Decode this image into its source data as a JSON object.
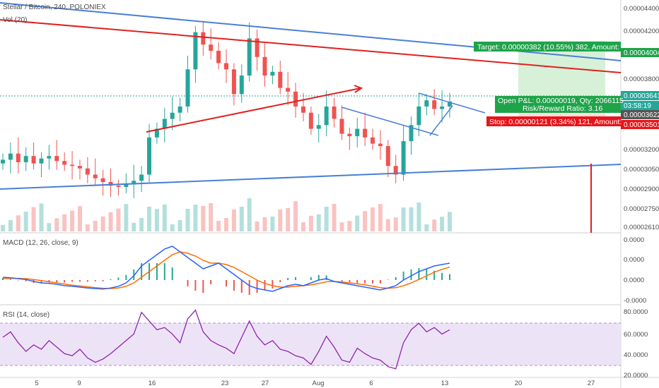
{
  "header": {
    "symbol_title": "Stellar / Bitcoin, 240, POLONIEX",
    "volume_label": "Vol (20)"
  },
  "chart_data": [
    {
      "type": "candlestick",
      "title": "Stellar / Bitcoin, 240, POLONIEX",
      "y_ticks": [
        "0.00004400",
        "0.00004200",
        "0.00003800",
        "0.00003350",
        "0.00003200",
        "0.00003050",
        "0.00002900",
        "0.00002750",
        "0.00002610"
      ],
      "x_ticks": [
        "5",
        "9",
        "16",
        "23",
        "27",
        "Aug",
        "6",
        "13",
        "20",
        "27"
      ],
      "price_tags": [
        {
          "text": "0.00004004",
          "color": "#1fa34a"
        },
        {
          "text": "0.00003641",
          "color": "#26a69a"
        },
        {
          "text": "03:58:19",
          "color": "#26a69a"
        },
        {
          "text": "0.00003622",
          "color": "#555555"
        },
        {
          "text": "0.00003501",
          "color": "#e8141a"
        }
      ],
      "position_tool": {
        "target_label": "Target: 0.00000382 (10.55%) 382, Amount:",
        "pnl_label": "Open P&L: 0.00000019, Qty: 2066115",
        "rr_label": "Risk/Reward Ratio: 3.16",
        "stop_label": "Stop: 0.00000121 (3.34%) 121, Amount:",
        "entry": 3.622e-05,
        "target": 4.004e-05,
        "stop": 3.501e-05
      },
      "ylim": [
        2.58e-05,
        4.46e-05
      ],
      "close_series": [
        3.17,
        3.22,
        3.15,
        3.2,
        3.14,
        3.18,
        3.2,
        3.16,
        3.13,
        3.12,
        3.1,
        3.05,
        3.02,
        2.99,
        2.96,
        2.95,
        2.97,
        3.0,
        3.05,
        3.35,
        3.42,
        3.5,
        3.55,
        3.6,
        3.9,
        4.2,
        4.1,
        4.05,
        3.95,
        3.9,
        3.7,
        3.85,
        4.15,
        4.0,
        3.85,
        3.88,
        3.75,
        3.72,
        3.6,
        3.55,
        3.42,
        3.45,
        3.6,
        3.5,
        3.38,
        3.36,
        3.42,
        3.35,
        3.3,
        3.28,
        3.12,
        3.05,
        3.32,
        3.45,
        3.6,
        3.65,
        3.58,
        3.6,
        3.64
      ],
      "series_colors": {
        "up": "#26a69a",
        "down": "#ef5350"
      }
    },
    {
      "type": "line",
      "title": "MACD (12, 26, close, 9)",
      "y_ticks": [
        "0.0000",
        "0.0000",
        "0.0000",
        "-0.0000"
      ],
      "macd": [
        0.1,
        0.08,
        0.05,
        0.02,
        -0.05,
        -0.1,
        -0.12,
        -0.15,
        -0.2,
        -0.22,
        -0.25,
        -0.28,
        -0.3,
        -0.32,
        -0.28,
        -0.22,
        -0.1,
        0.15,
        0.5,
        0.7,
        0.9,
        1.1,
        1.2,
        1.0,
        0.8,
        0.6,
        0.4,
        0.5,
        0.6,
        0.4,
        0.2,
        0.0,
        -0.2,
        -0.3,
        -0.35,
        -0.4,
        -0.3,
        -0.2,
        -0.15,
        -0.2,
        -0.1,
        0.0,
        0.05,
        -0.05,
        -0.1,
        -0.15,
        -0.2,
        -0.25,
        -0.3,
        -0.35,
        -0.28,
        -0.2,
        0.0,
        0.15,
        0.3,
        0.4,
        0.5,
        0.55,
        0.6
      ],
      "signal": [
        0.05,
        0.06,
        0.06,
        0.05,
        0.02,
        -0.02,
        -0.06,
        -0.1,
        -0.14,
        -0.18,
        -0.21,
        -0.24,
        -0.27,
        -0.29,
        -0.3,
        -0.28,
        -0.22,
        -0.1,
        0.1,
        0.3,
        0.5,
        0.7,
        0.9,
        1.0,
        0.95,
        0.85,
        0.7,
        0.6,
        0.6,
        0.55,
        0.45,
        0.3,
        0.15,
        0.0,
        -0.12,
        -0.2,
        -0.25,
        -0.25,
        -0.22,
        -0.2,
        -0.17,
        -0.12,
        -0.06,
        -0.05,
        -0.07,
        -0.1,
        -0.13,
        -0.17,
        -0.22,
        -0.27,
        -0.29,
        -0.27,
        -0.2,
        -0.1,
        0.02,
        0.15,
        0.28,
        0.38,
        0.46
      ],
      "macd_color": "#2962ff",
      "signal_color": "#ff6d00"
    },
    {
      "type": "line",
      "title": "RSI (14, close)",
      "y_ticks": [
        "80.0000",
        "60.0000",
        "40.0000",
        "20.0000"
      ],
      "ylim": [
        20,
        85
      ],
      "band": [
        30,
        70
      ],
      "rsi": [
        55,
        60,
        50,
        42,
        48,
        44,
        52,
        46,
        40,
        38,
        44,
        36,
        32,
        35,
        40,
        46,
        52,
        58,
        78,
        70,
        62,
        64,
        58,
        50,
        72,
        80,
        60,
        52,
        48,
        45,
        40,
        55,
        70,
        56,
        48,
        52,
        44,
        42,
        38,
        36,
        30,
        42,
        56,
        46,
        34,
        32,
        45,
        40,
        36,
        34,
        28,
        26,
        50,
        62,
        68,
        60,
        64,
        58,
        62
      ],
      "rsi_color": "#8e24aa"
    }
  ]
}
